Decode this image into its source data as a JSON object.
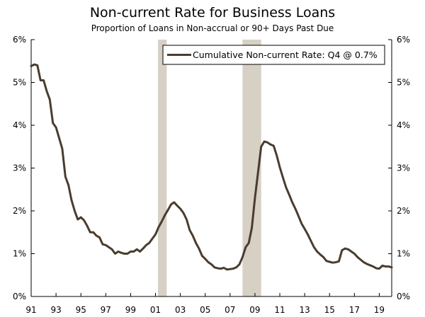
{
  "chart_data": {
    "type": "line",
    "title": "Non-current Rate for Business Loans",
    "subtitle": "Proportion of Loans in Non-accrual or 90+ Days Past Due",
    "xlabel": "",
    "ylabel": "",
    "xlim": [
      1991.0,
      2020.0
    ],
    "ylim": [
      0,
      6
    ],
    "x_ticks": [
      1991,
      1993,
      1995,
      1997,
      1999,
      2001,
      2003,
      2005,
      2007,
      2009,
      2011,
      2013,
      2015,
      2017,
      2019
    ],
    "x_tick_labels": [
      "91",
      "93",
      "95",
      "97",
      "99",
      "01",
      "03",
      "05",
      "07",
      "09",
      "11",
      "13",
      "15",
      "17",
      "19"
    ],
    "y_ticks": [
      0,
      1,
      2,
      3,
      4,
      5,
      6
    ],
    "y_tick_labels": [
      "0%",
      "1%",
      "2%",
      "3%",
      "4%",
      "5%",
      "6%"
    ],
    "grid": false,
    "legend_position": "top-right",
    "colors": {
      "line": "#4a3c2e",
      "recession": "#d6d1c4",
      "axis": "#000000"
    },
    "recessions": [
      {
        "start": 2001.2,
        "end": 2001.9
      },
      {
        "start": 2008.0,
        "end": 2009.5
      }
    ],
    "series": [
      {
        "name": "Cumulative Non-current Rate: Q4 @ 0.7%",
        "points": [
          [
            1991.0,
            5.38
          ],
          [
            1991.25,
            5.42
          ],
          [
            1991.5,
            5.4
          ],
          [
            1991.75,
            5.05
          ],
          [
            1992.0,
            5.05
          ],
          [
            1992.25,
            4.8
          ],
          [
            1992.5,
            4.6
          ],
          [
            1992.75,
            4.05
          ],
          [
            1993.0,
            3.95
          ],
          [
            1993.25,
            3.7
          ],
          [
            1993.5,
            3.45
          ],
          [
            1993.75,
            2.8
          ],
          [
            1994.0,
            2.6
          ],
          [
            1994.25,
            2.25
          ],
          [
            1994.5,
            2.0
          ],
          [
            1994.75,
            1.8
          ],
          [
            1995.0,
            1.85
          ],
          [
            1995.25,
            1.78
          ],
          [
            1995.5,
            1.65
          ],
          [
            1995.75,
            1.5
          ],
          [
            1996.0,
            1.5
          ],
          [
            1996.25,
            1.42
          ],
          [
            1996.5,
            1.38
          ],
          [
            1996.75,
            1.22
          ],
          [
            1997.0,
            1.2
          ],
          [
            1997.25,
            1.15
          ],
          [
            1997.5,
            1.1
          ],
          [
            1997.75,
            1.0
          ],
          [
            1998.0,
            1.05
          ],
          [
            1998.25,
            1.02
          ],
          [
            1998.5,
            1.0
          ],
          [
            1998.75,
            1.0
          ],
          [
            1999.0,
            1.05
          ],
          [
            1999.25,
            1.05
          ],
          [
            1999.5,
            1.1
          ],
          [
            1999.75,
            1.05
          ],
          [
            2000.0,
            1.12
          ],
          [
            2000.25,
            1.2
          ],
          [
            2000.5,
            1.25
          ],
          [
            2000.75,
            1.35
          ],
          [
            2001.0,
            1.45
          ],
          [
            2001.25,
            1.62
          ],
          [
            2001.5,
            1.75
          ],
          [
            2001.75,
            1.9
          ],
          [
            2002.0,
            2.02
          ],
          [
            2002.25,
            2.15
          ],
          [
            2002.5,
            2.2
          ],
          [
            2002.75,
            2.12
          ],
          [
            2003.0,
            2.05
          ],
          [
            2003.25,
            1.95
          ],
          [
            2003.5,
            1.8
          ],
          [
            2003.75,
            1.55
          ],
          [
            2004.0,
            1.42
          ],
          [
            2004.25,
            1.25
          ],
          [
            2004.5,
            1.12
          ],
          [
            2004.75,
            0.95
          ],
          [
            2005.0,
            0.88
          ],
          [
            2005.25,
            0.8
          ],
          [
            2005.5,
            0.75
          ],
          [
            2005.75,
            0.68
          ],
          [
            2006.0,
            0.66
          ],
          [
            2006.25,
            0.65
          ],
          [
            2006.5,
            0.67
          ],
          [
            2006.75,
            0.63
          ],
          [
            2007.0,
            0.64
          ],
          [
            2007.25,
            0.65
          ],
          [
            2007.5,
            0.68
          ],
          [
            2007.75,
            0.75
          ],
          [
            2008.0,
            0.92
          ],
          [
            2008.25,
            1.15
          ],
          [
            2008.5,
            1.25
          ],
          [
            2008.75,
            1.6
          ],
          [
            2009.0,
            2.3
          ],
          [
            2009.25,
            2.9
          ],
          [
            2009.5,
            3.5
          ],
          [
            2009.75,
            3.62
          ],
          [
            2010.0,
            3.6
          ],
          [
            2010.25,
            3.55
          ],
          [
            2010.5,
            3.52
          ],
          [
            2010.75,
            3.3
          ],
          [
            2011.0,
            3.02
          ],
          [
            2011.25,
            2.78
          ],
          [
            2011.5,
            2.55
          ],
          [
            2011.75,
            2.38
          ],
          [
            2012.0,
            2.2
          ],
          [
            2012.25,
            2.05
          ],
          [
            2012.5,
            1.88
          ],
          [
            2012.75,
            1.7
          ],
          [
            2013.0,
            1.58
          ],
          [
            2013.25,
            1.45
          ],
          [
            2013.5,
            1.3
          ],
          [
            2013.75,
            1.15
          ],
          [
            2014.0,
            1.05
          ],
          [
            2014.25,
            0.98
          ],
          [
            2014.5,
            0.92
          ],
          [
            2014.75,
            0.83
          ],
          [
            2015.0,
            0.81
          ],
          [
            2015.25,
            0.79
          ],
          [
            2015.5,
            0.8
          ],
          [
            2015.75,
            0.82
          ],
          [
            2016.0,
            1.08
          ],
          [
            2016.25,
            1.12
          ],
          [
            2016.5,
            1.1
          ],
          [
            2016.75,
            1.05
          ],
          [
            2017.0,
            1.0
          ],
          [
            2017.25,
            0.92
          ],
          [
            2017.5,
            0.86
          ],
          [
            2017.75,
            0.8
          ],
          [
            2018.0,
            0.76
          ],
          [
            2018.25,
            0.73
          ],
          [
            2018.5,
            0.7
          ],
          [
            2018.75,
            0.66
          ],
          [
            2019.0,
            0.65
          ],
          [
            2019.25,
            0.72
          ],
          [
            2019.5,
            0.7
          ],
          [
            2019.75,
            0.7
          ],
          [
            2020.0,
            0.68
          ]
        ]
      }
    ]
  }
}
